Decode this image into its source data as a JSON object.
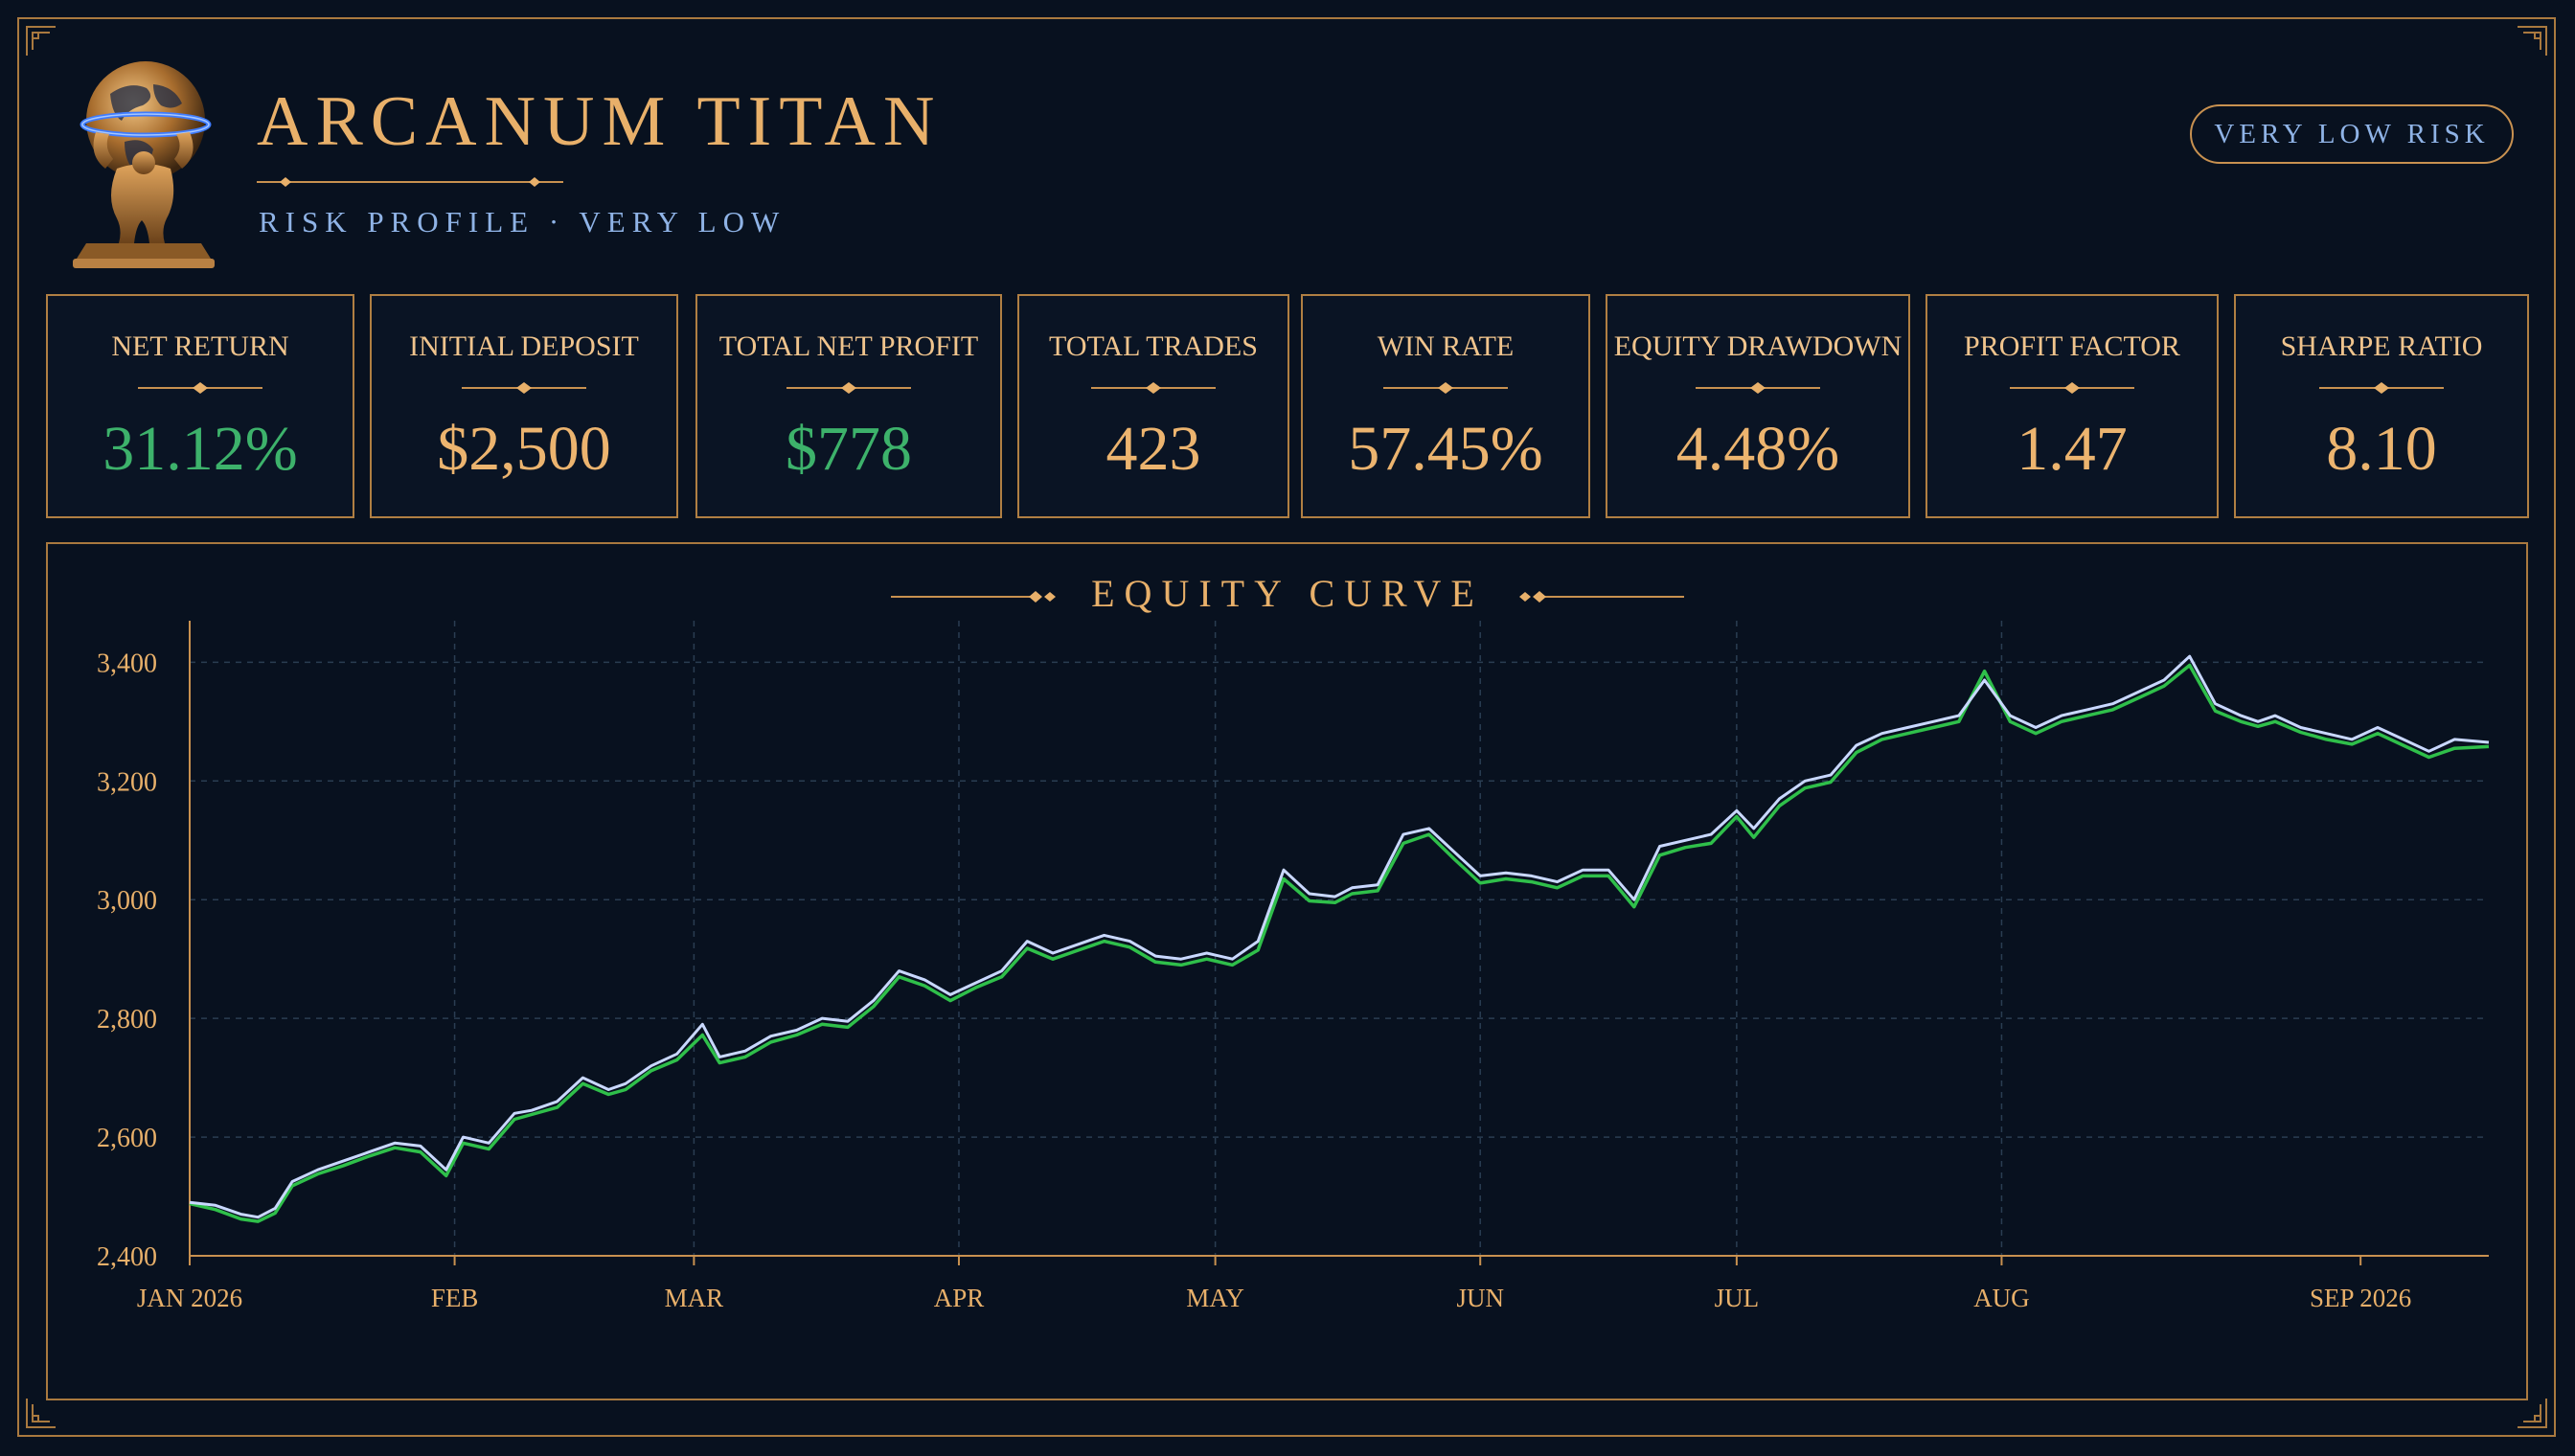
{
  "header": {
    "title": "ARCANUM TITAN",
    "subtitle": "RISK PROFILE · VERY LOW",
    "badge": "VERY LOW RISK",
    "logo_icon": "atlas-globe-icon"
  },
  "stats": [
    {
      "label": "NET RETURN",
      "value": "31.12%",
      "tone": "positive"
    },
    {
      "label": "INITIAL DEPOSIT",
      "value": "$2,500",
      "tone": "neutral"
    },
    {
      "label": "TOTAL NET PROFIT",
      "value": "$778",
      "tone": "positive"
    },
    {
      "label": "TOTAL TRADES",
      "value": "423",
      "tone": "neutral"
    },
    {
      "label": "WIN RATE",
      "value": "57.45%",
      "tone": "neutral"
    },
    {
      "label": "EQUITY DRAWDOWN",
      "value": "4.48%",
      "tone": "neutral"
    },
    {
      "label": "PROFIT FACTOR",
      "value": "1.47",
      "tone": "neutral"
    },
    {
      "label": "SHARPE RATIO",
      "value": "8.10",
      "tone": "neutral"
    }
  ],
  "colors": {
    "gold": "#e8b06a",
    "positive": "#3db26b",
    "blue_text": "#8fb3e6",
    "background": "#08111f",
    "equity_line": "#c9d8ff",
    "balance_line": "#2fbf4a",
    "grid": "#2a3d52"
  },
  "chart_data": {
    "type": "line",
    "title": "EQUITY CURVE",
    "xlabel": "",
    "ylabel": "",
    "x_ticks": [
      "JAN 2026",
      "FEB",
      "MAR",
      "APR",
      "MAY",
      "JUN",
      "JUL",
      "AUG",
      "SEP 2026"
    ],
    "y_ticks": [
      2400,
      2600,
      2800,
      3000,
      3200,
      3400
    ],
    "ylim": [
      2400,
      3470
    ],
    "xlim": [
      "2026-01-01",
      "2026-09-27"
    ],
    "grid": true,
    "legend": "none",
    "series": [
      {
        "color": "#c9d8ff",
        "x": [
          "2026-01-01",
          "2026-01-04",
          "2026-01-07",
          "2026-01-09",
          "2026-01-11",
          "2026-01-13",
          "2026-01-16",
          "2026-01-19",
          "2026-01-22",
          "2026-01-25",
          "2026-01-28",
          "2026-01-31",
          "2026-02-02",
          "2026-02-05",
          "2026-02-08",
          "2026-02-10",
          "2026-02-13",
          "2026-02-16",
          "2026-02-19",
          "2026-02-21",
          "2026-02-24",
          "2026-02-27",
          "2026-03-02",
          "2026-03-04",
          "2026-03-07",
          "2026-03-10",
          "2026-03-13",
          "2026-03-16",
          "2026-03-19",
          "2026-03-22",
          "2026-03-25",
          "2026-03-28",
          "2026-03-31",
          "2026-04-03",
          "2026-04-06",
          "2026-04-09",
          "2026-04-12",
          "2026-04-15",
          "2026-04-18",
          "2026-04-21",
          "2026-04-24",
          "2026-04-27",
          "2026-04-30",
          "2026-05-03",
          "2026-05-06",
          "2026-05-09",
          "2026-05-12",
          "2026-05-15",
          "2026-05-17",
          "2026-05-20",
          "2026-05-23",
          "2026-05-26",
          "2026-05-29",
          "2026-06-01",
          "2026-06-04",
          "2026-06-07",
          "2026-06-10",
          "2026-06-13",
          "2026-06-16",
          "2026-06-19",
          "2026-06-22",
          "2026-06-25",
          "2026-06-28",
          "2026-07-01",
          "2026-07-03",
          "2026-07-06",
          "2026-07-09",
          "2026-07-12",
          "2026-07-15",
          "2026-07-18",
          "2026-07-21",
          "2026-07-24",
          "2026-07-27",
          "2026-07-30",
          "2026-08-02",
          "2026-08-05",
          "2026-08-08",
          "2026-08-11",
          "2026-08-14",
          "2026-08-17",
          "2026-08-20",
          "2026-08-23",
          "2026-08-26",
          "2026-08-29",
          "2026-08-31",
          "2026-09-02",
          "2026-09-05",
          "2026-09-08",
          "2026-09-11",
          "2026-09-14",
          "2026-09-17",
          "2026-09-20",
          "2026-09-23",
          "2026-09-27"
        ],
        "y": [
          2490,
          2485,
          2470,
          2465,
          2480,
          2525,
          2545,
          2560,
          2575,
          2590,
          2585,
          2545,
          2600,
          2590,
          2640,
          2645,
          2660,
          2700,
          2680,
          2690,
          2720,
          2740,
          2790,
          2735,
          2745,
          2770,
          2780,
          2800,
          2795,
          2830,
          2880,
          2865,
          2840,
          2860,
          2880,
          2930,
          2910,
          2925,
          2940,
          2930,
          2905,
          2900,
          2910,
          2900,
          2930,
          3050,
          3010,
          3005,
          3020,
          3025,
          3110,
          3120,
          3080,
          3040,
          3045,
          3040,
          3030,
          3050,
          3050,
          3000,
          3090,
          3100,
          3110,
          3150,
          3120,
          3170,
          3200,
          3210,
          3260,
          3280,
          3290,
          3300,
          3310,
          3370,
          3310,
          3290,
          3310,
          3320,
          3330,
          3350,
          3370,
          3410,
          3330,
          3310,
          3300,
          3310,
          3290,
          3280,
          3270,
          3290,
          3270,
          3250,
          3270,
          3265
        ]
      },
      {
        "color": "#2fbf4a",
        "x": [
          "2026-01-01",
          "2026-01-04",
          "2026-01-07",
          "2026-01-09",
          "2026-01-11",
          "2026-01-13",
          "2026-01-16",
          "2026-01-19",
          "2026-01-22",
          "2026-01-25",
          "2026-01-28",
          "2026-01-31",
          "2026-02-02",
          "2026-02-05",
          "2026-02-08",
          "2026-02-10",
          "2026-02-13",
          "2026-02-16",
          "2026-02-19",
          "2026-02-21",
          "2026-02-24",
          "2026-02-27",
          "2026-03-02",
          "2026-03-04",
          "2026-03-07",
          "2026-03-10",
          "2026-03-13",
          "2026-03-16",
          "2026-03-19",
          "2026-03-22",
          "2026-03-25",
          "2026-03-28",
          "2026-03-31",
          "2026-04-03",
          "2026-04-06",
          "2026-04-09",
          "2026-04-12",
          "2026-04-15",
          "2026-04-18",
          "2026-04-21",
          "2026-04-24",
          "2026-04-27",
          "2026-04-30",
          "2026-05-03",
          "2026-05-06",
          "2026-05-09",
          "2026-05-12",
          "2026-05-15",
          "2026-05-17",
          "2026-05-20",
          "2026-05-23",
          "2026-05-26",
          "2026-05-29",
          "2026-06-01",
          "2026-06-04",
          "2026-06-07",
          "2026-06-10",
          "2026-06-13",
          "2026-06-16",
          "2026-06-19",
          "2026-06-22",
          "2026-06-25",
          "2026-06-28",
          "2026-07-01",
          "2026-07-03",
          "2026-07-06",
          "2026-07-09",
          "2026-07-12",
          "2026-07-15",
          "2026-07-18",
          "2026-07-21",
          "2026-07-24",
          "2026-07-27",
          "2026-07-30",
          "2026-08-02",
          "2026-08-05",
          "2026-08-08",
          "2026-08-11",
          "2026-08-14",
          "2026-08-17",
          "2026-08-20",
          "2026-08-23",
          "2026-08-26",
          "2026-08-29",
          "2026-08-31",
          "2026-09-02",
          "2026-09-05",
          "2026-09-08",
          "2026-09-11",
          "2026-09-14",
          "2026-09-17",
          "2026-09-20",
          "2026-09-23",
          "2026-09-27"
        ],
        "y": [
          2488,
          2478,
          2462,
          2458,
          2472,
          2518,
          2538,
          2552,
          2568,
          2582,
          2575,
          2535,
          2590,
          2580,
          2630,
          2638,
          2650,
          2690,
          2672,
          2680,
          2712,
          2730,
          2772,
          2725,
          2735,
          2760,
          2772,
          2790,
          2785,
          2820,
          2870,
          2855,
          2830,
          2852,
          2870,
          2918,
          2900,
          2915,
          2930,
          2920,
          2895,
          2890,
          2900,
          2890,
          2915,
          3035,
          2998,
          2995,
          3010,
          3015,
          3095,
          3110,
          3068,
          3028,
          3035,
          3030,
          3020,
          3040,
          3040,
          2988,
          3075,
          3088,
          3095,
          3140,
          3105,
          3158,
          3188,
          3198,
          3248,
          3270,
          3280,
          3290,
          3300,
          3385,
          3300,
          3280,
          3300,
          3310,
          3320,
          3340,
          3360,
          3395,
          3318,
          3300,
          3292,
          3300,
          3282,
          3270,
          3262,
          3280,
          3260,
          3240,
          3255,
          3258
        ]
      }
    ]
  }
}
